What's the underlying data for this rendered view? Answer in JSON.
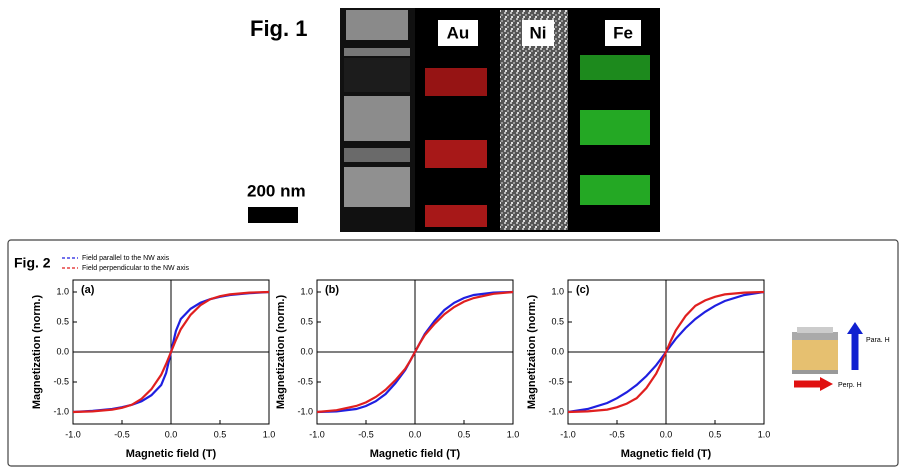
{
  "figure1": {
    "label": "Fig. 1",
    "scale_bar": "200 nm",
    "maps": [
      "Au",
      "Ni",
      "Fe"
    ]
  },
  "figure2": {
    "label": "Fig. 2",
    "inset": {
      "parallel": "Para. H",
      "perpendicular": "Perp. H"
    }
  },
  "chart_data": [
    {
      "type": "line",
      "annotation": "(a)",
      "x_label": "Magnetic field (T)",
      "y_label": "Magnetization (norm.)",
      "x": [
        -1,
        -0.8,
        -0.6,
        -0.5,
        -0.4,
        -0.3,
        -0.2,
        -0.1,
        -0.05,
        0,
        0.05,
        0.1,
        0.2,
        0.3,
        0.4,
        0.5,
        0.6,
        0.8,
        1
      ],
      "series": [
        {
          "name": "Field parallel to the NW axis",
          "color": "#1f1fe0",
          "values": [
            -1,
            -0.98,
            -0.95,
            -0.92,
            -0.88,
            -0.82,
            -0.72,
            -0.55,
            -0.35,
            0,
            0.35,
            0.55,
            0.72,
            0.82,
            0.88,
            0.92,
            0.95,
            0.98,
            1
          ]
        },
        {
          "name": "Field perpendicular to the NW axis",
          "color": "#e01f1f",
          "values": [
            -1,
            -0.99,
            -0.96,
            -0.93,
            -0.88,
            -0.78,
            -0.62,
            -0.38,
            -0.2,
            0,
            0.2,
            0.38,
            0.62,
            0.78,
            0.88,
            0.93,
            0.96,
            0.99,
            1
          ]
        }
      ],
      "xlim": [
        -1,
        1
      ],
      "ylim": [
        -1.2,
        1.2
      ],
      "xticks": [
        {
          "value": -1,
          "label": "-1.0"
        },
        -0.5,
        {
          "value": 0,
          "label": "0.0"
        },
        0.5,
        {
          "value": 1,
          "label": "1.0"
        }
      ],
      "yticks": [
        {
          "value": -1,
          "label": "-1.0"
        },
        -0.5,
        {
          "value": 0,
          "label": "0.0"
        },
        0.5,
        {
          "value": 1,
          "label": "1.0"
        }
      ]
    },
    {
      "type": "line",
      "annotation": "(b)",
      "x_label": "Magnetic field (T)",
      "y_label": "Magnetization (norm.)",
      "x": [
        -1,
        -0.8,
        -0.6,
        -0.5,
        -0.4,
        -0.3,
        -0.2,
        -0.1,
        -0.05,
        0,
        0.05,
        0.1,
        0.2,
        0.3,
        0.4,
        0.5,
        0.6,
        0.8,
        1
      ],
      "series": [
        {
          "color": "#1f1fe0",
          "values": [
            -1,
            -0.99,
            -0.95,
            -0.9,
            -0.82,
            -0.7,
            -0.52,
            -0.3,
            -0.15,
            0,
            0.15,
            0.3,
            0.52,
            0.7,
            0.82,
            0.9,
            0.95,
            0.99,
            1
          ]
        },
        {
          "color": "#e01f1f",
          "values": [
            -1,
            -0.97,
            -0.9,
            -0.84,
            -0.75,
            -0.63,
            -0.47,
            -0.28,
            -0.15,
            0,
            0.15,
            0.28,
            0.47,
            0.63,
            0.75,
            0.84,
            0.9,
            0.97,
            1
          ]
        }
      ],
      "xlim": [
        -1,
        1
      ],
      "ylim": [
        -1.2,
        1.2
      ],
      "xticks": [
        {
          "value": -1,
          "label": "-1.0"
        },
        -0.5,
        {
          "value": 0,
          "label": "0.0"
        },
        0.5,
        {
          "value": 1,
          "label": "1.0"
        }
      ],
      "yticks": [
        {
          "value": -1,
          "label": "-1.0"
        },
        -0.5,
        {
          "value": 0,
          "label": "0.0"
        },
        0.5,
        {
          "value": 1,
          "label": "1.0"
        }
      ]
    },
    {
      "type": "line",
      "annotation": "(c)",
      "x_label": "Magnetic field (T)",
      "y_label": "Magnetization (norm.)",
      "x": [
        -1,
        -0.8,
        -0.6,
        -0.5,
        -0.4,
        -0.3,
        -0.2,
        -0.1,
        -0.05,
        0,
        0.05,
        0.1,
        0.2,
        0.3,
        0.4,
        0.5,
        0.6,
        0.8,
        1
      ],
      "series": [
        {
          "color": "#1f1fe0",
          "values": [
            -1,
            -0.95,
            -0.85,
            -0.77,
            -0.67,
            -0.55,
            -0.4,
            -0.22,
            -0.11,
            0,
            0.11,
            0.22,
            0.4,
            0.55,
            0.67,
            0.77,
            0.85,
            0.95,
            1
          ]
        },
        {
          "color": "#e01f1f",
          "values": [
            -1,
            -0.99,
            -0.96,
            -0.92,
            -0.86,
            -0.77,
            -0.6,
            -0.36,
            -0.19,
            0,
            0.19,
            0.36,
            0.6,
            0.77,
            0.86,
            0.92,
            0.96,
            0.99,
            1
          ]
        }
      ],
      "xlim": [
        -1,
        1
      ],
      "ylim": [
        -1.2,
        1.2
      ],
      "xticks": [
        {
          "value": -1,
          "label": "-1.0"
        },
        -0.5,
        {
          "value": 0,
          "label": "0.0"
        },
        0.5,
        {
          "value": 1,
          "label": "1.0"
        }
      ],
      "yticks": [
        {
          "value": -1,
          "label": "-1.0"
        },
        -0.5,
        {
          "value": 0,
          "label": "0.0"
        },
        0.5,
        {
          "value": 1,
          "label": "1.0"
        }
      ]
    }
  ]
}
